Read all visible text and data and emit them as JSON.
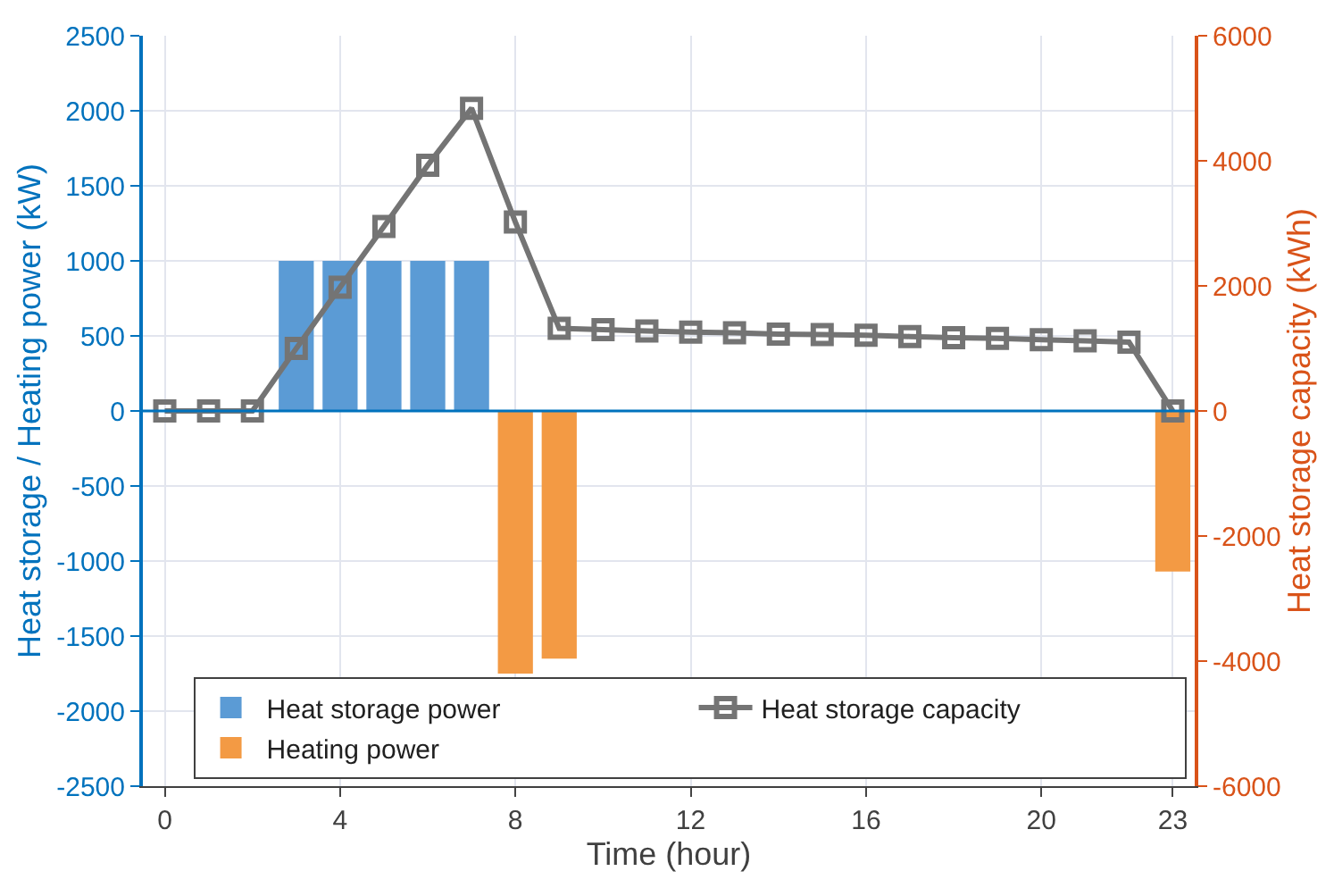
{
  "chart_data": {
    "type": "bar",
    "xlabel": "Time (hour)",
    "ylabel": "Heat storage / Heating power (kW)",
    "y2label": "Heat storage capacity (kWh)",
    "x": [
      0,
      1,
      2,
      3,
      4,
      5,
      6,
      7,
      8,
      9,
      10,
      11,
      12,
      13,
      14,
      15,
      16,
      17,
      18,
      19,
      20,
      21,
      22,
      23
    ],
    "series": [
      {
        "name": "Heat storage power",
        "color": "#5b9bd5",
        "values": [
          0,
          0,
          0,
          1000,
          1000,
          1000,
          1000,
          1000,
          0,
          0,
          0,
          0,
          0,
          0,
          0,
          0,
          0,
          0,
          0,
          0,
          0,
          0,
          0,
          0
        ]
      },
      {
        "name": "Heat storage capacity",
        "type": "line",
        "axis": "y2",
        "color": "#747474",
        "marker": "square",
        "values": [
          0,
          0,
          0,
          1000,
          1980,
          2950,
          3930,
          4840,
          3020,
          1320,
          1300,
          1280,
          1260,
          1250,
          1230,
          1220,
          1210,
          1190,
          1170,
          1160,
          1140,
          1120,
          1100,
          0
        ]
      },
      {
        "name": "Heating power",
        "color": "#f39a44",
        "values": [
          0,
          0,
          0,
          0,
          0,
          0,
          0,
          0,
          -1750,
          -1650,
          0,
          0,
          0,
          0,
          0,
          0,
          0,
          0,
          0,
          0,
          0,
          0,
          0,
          -1070
        ]
      }
    ],
    "xlim": [
      -0.5,
      23.5
    ],
    "xticks": [
      0,
      4,
      8,
      12,
      16,
      20,
      23
    ],
    "ylim": [
      -2500,
      2500
    ],
    "yticks": [
      -2500,
      -2000,
      -1500,
      -1000,
      -500,
      0,
      500,
      1000,
      1500,
      2000,
      2500
    ],
    "y2lim": [
      -6000,
      6000
    ],
    "y2ticks": [
      -6000,
      -4000,
      -2000,
      0,
      2000,
      4000,
      6000
    ],
    "ref_lines": [
      {
        "axis": "y",
        "value": 0,
        "color": "#0072bd"
      }
    ],
    "grid": true,
    "legend": "bottom"
  }
}
